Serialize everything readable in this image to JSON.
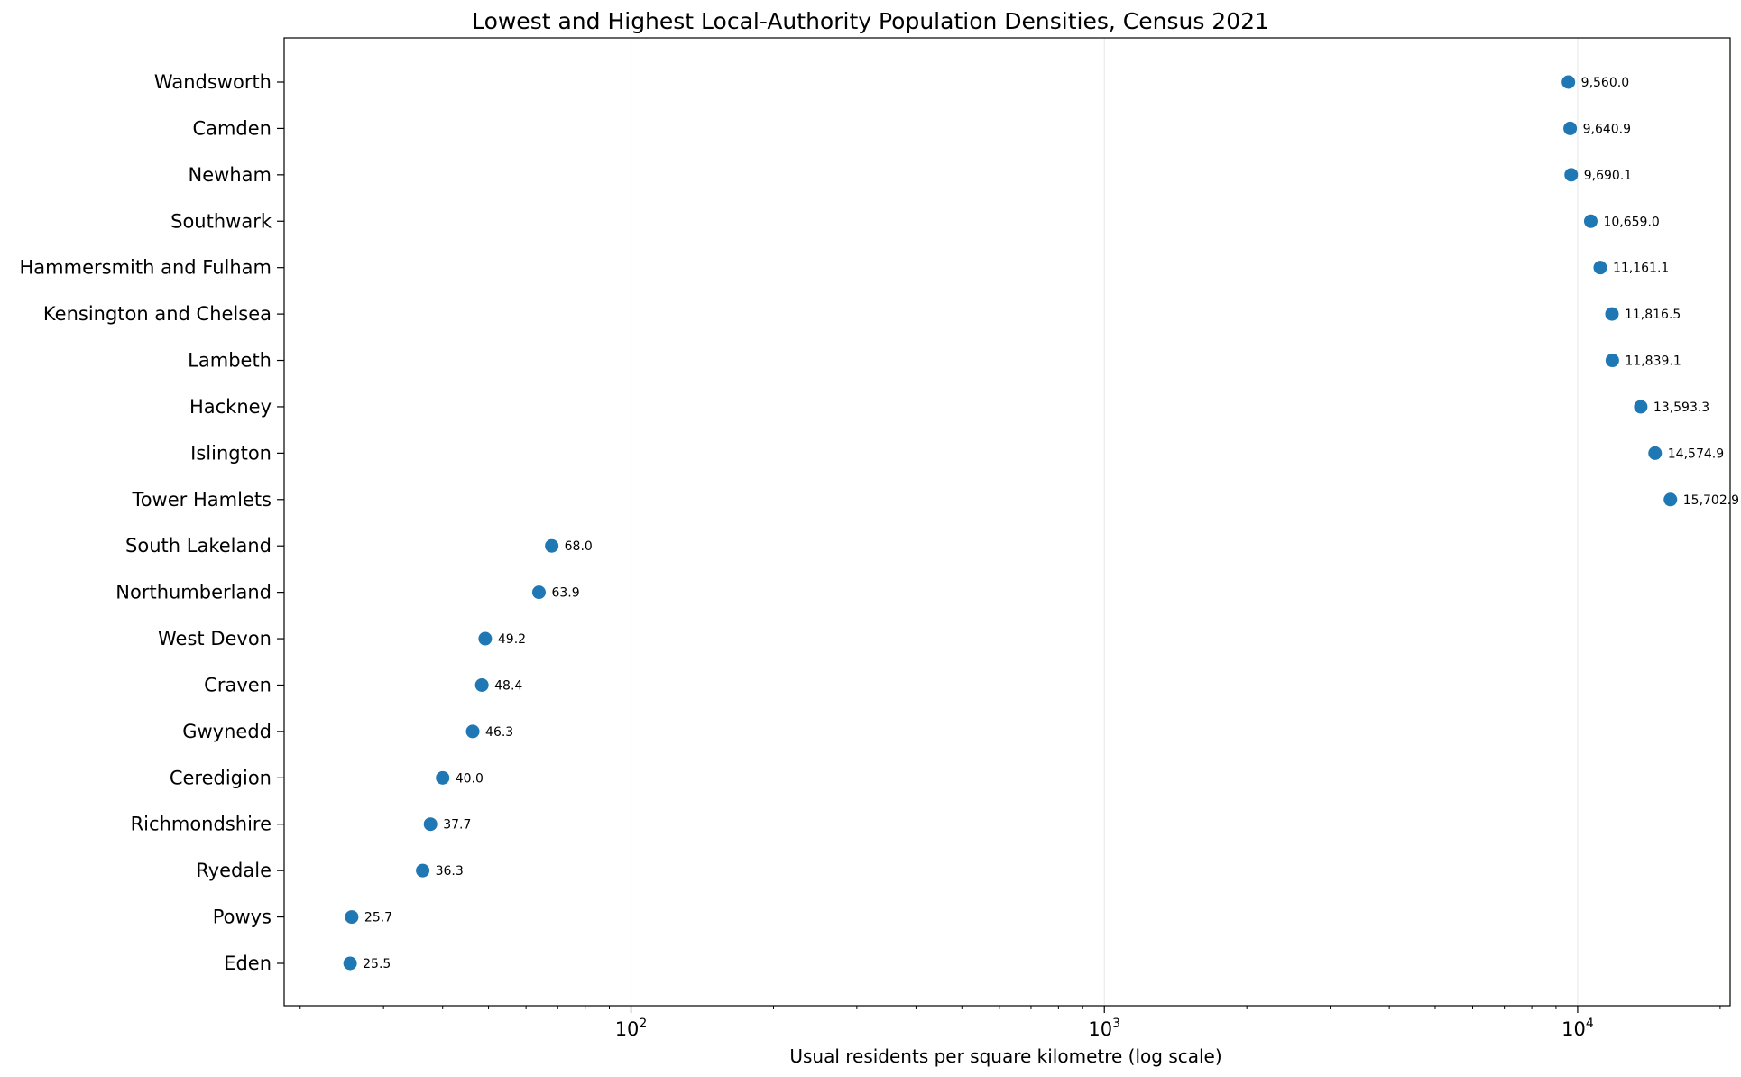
{
  "chart_data": {
    "type": "scatter",
    "orientation": "horizontal",
    "title": "Lowest and Highest Local-Authority Population Densities, Census 2021",
    "xlabel": "Usual residents per square kilometre (log scale)",
    "ylabel": "",
    "x_scale": "log",
    "xlim": [
      18.5,
      21000
    ],
    "x_ticks": [
      {
        "base": "10",
        "exp": "2",
        "value": 100
      },
      {
        "base": "10",
        "exp": "3",
        "value": 1000
      },
      {
        "base": "10",
        "exp": "4",
        "value": 10000
      }
    ],
    "grid": "vertical",
    "marker_color": "#1f77b4",
    "categories": [
      "Wandsworth",
      "Camden",
      "Newham",
      "Southwark",
      "Hammersmith and Fulham",
      "Kensington and Chelsea",
      "Lambeth",
      "Hackney",
      "Islington",
      "Tower Hamlets",
      "South Lakeland",
      "Northumberland",
      "West Devon",
      "Craven",
      "Gwynedd",
      "Ceredigion",
      "Richmondshire",
      "Ryedale",
      "Powys",
      "Eden"
    ],
    "values": [
      9560.0,
      9640.9,
      9690.1,
      10659.0,
      11161.1,
      11816.5,
      11839.1,
      13593.3,
      14574.9,
      15702.9,
      68.0,
      63.9,
      49.2,
      48.4,
      46.3,
      40.0,
      37.7,
      36.3,
      25.7,
      25.5
    ],
    "value_labels": [
      "9,560.0",
      "9,640.9",
      "9,690.1",
      "10,659.0",
      "11,161.1",
      "11,816.5",
      "11,839.1",
      "13,593.3",
      "14,574.9",
      "15,702.9",
      "68.0",
      "63.9",
      "49.2",
      "48.4",
      "46.3",
      "40.0",
      "37.7",
      "36.3",
      "25.7",
      "25.5"
    ]
  }
}
